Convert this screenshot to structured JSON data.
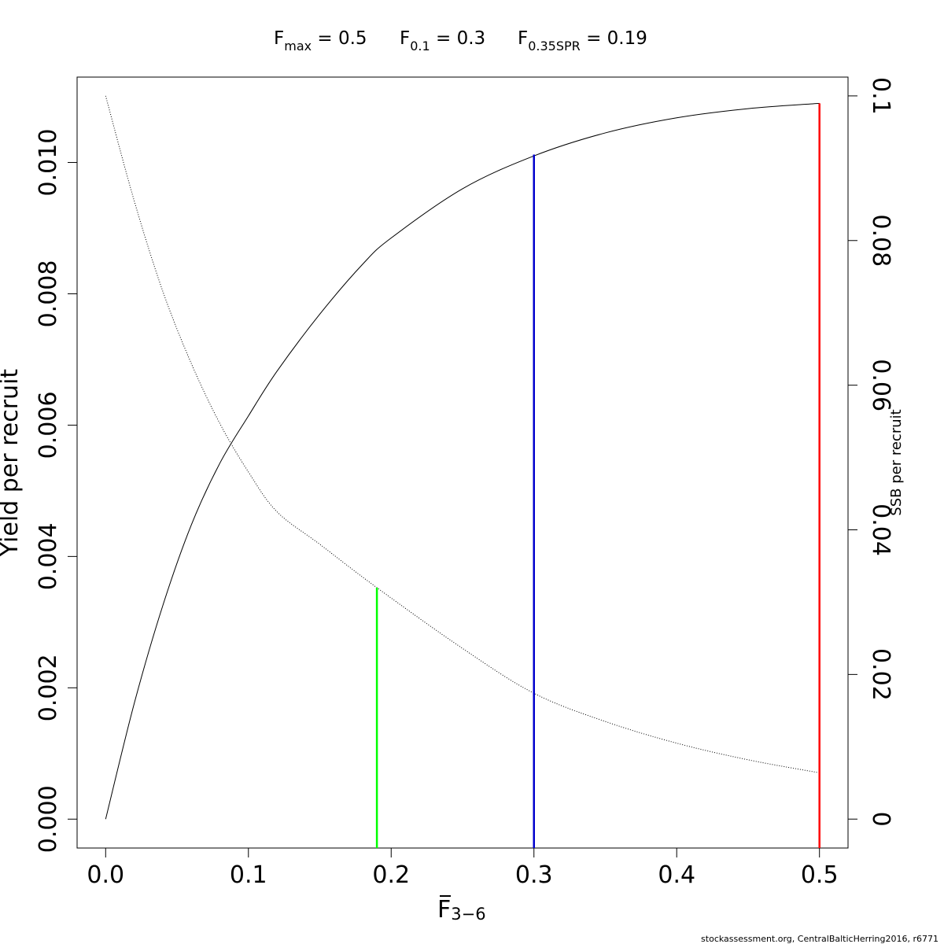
{
  "header": {
    "parts": [
      {
        "symbol": "F",
        "subscript": "max",
        "value": " = 0.5"
      },
      {
        "symbol": "F",
        "subscript": "0.1",
        "value": " = 0.3"
      },
      {
        "symbol": "F",
        "subscript": "0.35SPR",
        "value": " = 0.19"
      }
    ]
  },
  "caption": "stockassessment.org, CentralBalticHerring2016, r6771",
  "chart_data": {
    "type": "line",
    "title": "",
    "xlabel": {
      "symbol": "F",
      "subscript": "3−6",
      "overbar": true
    },
    "ylabel_left": "Yield per recruit",
    "ylabel_right": "SSB per recruit",
    "xlim": [
      -0.02,
      0.52
    ],
    "ylim_left": [
      -0.00044,
      0.0113
    ],
    "ylim_right": [
      -0.004,
      0.1026
    ],
    "x_ticks": [
      "0.0",
      "0.1",
      "0.2",
      "0.3",
      "0.4",
      "0.5"
    ],
    "y_left_ticks": [
      "0.000",
      "0.002",
      "0.004",
      "0.006",
      "0.008",
      "0.010"
    ],
    "y_right_ticks": [
      "0",
      "0.02",
      "0.04",
      "0.06",
      "0.08",
      "0.1"
    ],
    "grid": false,
    "series": [
      {
        "name": "Yield per recruit",
        "axis": "left",
        "style": "solid",
        "color": "#000000",
        "x": [
          0.0,
          0.02,
          0.04,
          0.06,
          0.08,
          0.1,
          0.12,
          0.15,
          0.18,
          0.2,
          0.25,
          0.3,
          0.35,
          0.4,
          0.45,
          0.5
        ],
        "y": [
          0.0,
          0.00176,
          0.00325,
          0.00448,
          0.00542,
          0.00614,
          0.00682,
          0.00769,
          0.00845,
          0.00885,
          0.0096,
          0.0101,
          0.01045,
          0.01068,
          0.01082,
          0.0109
        ]
      },
      {
        "name": "SSB per recruit",
        "axis": "right",
        "style": "dotted",
        "color": "#000000",
        "x": [
          0.0,
          0.02,
          0.04,
          0.06,
          0.08,
          0.1,
          0.12,
          0.15,
          0.19,
          0.25,
          0.3,
          0.35,
          0.4,
          0.45,
          0.5
        ],
        "y": [
          0.1,
          0.0855,
          0.073,
          0.063,
          0.0547,
          0.048,
          0.0425,
          0.038,
          0.032,
          0.0236,
          0.0174,
          0.0135,
          0.0105,
          0.0082,
          0.0064
        ]
      }
    ],
    "reference_lines": [
      {
        "label": "F0.35SPR",
        "x": 0.19,
        "axis": "right",
        "y_top": 0.032,
        "color": "#00ff00"
      },
      {
        "label": "F0.1",
        "x": 0.3,
        "axis": "left",
        "y_top": 0.01012,
        "color": "#0000cd"
      },
      {
        "label": "Fmax",
        "x": 0.5,
        "axis": "left",
        "y_top": 0.0109,
        "color": "#ff0000"
      }
    ]
  }
}
